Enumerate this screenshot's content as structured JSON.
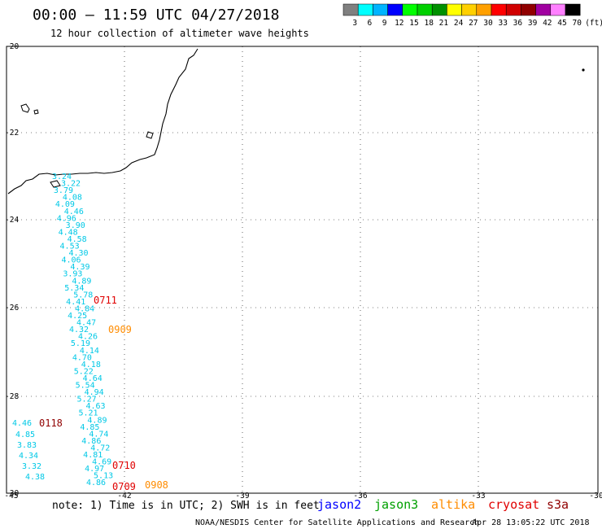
{
  "title": "00:00 – 11:59 UTC 04/27/2018",
  "subtitle": "12 hour collection of altimeter wave heights",
  "legend": {
    "labels": [
      "3",
      "6",
      "9",
      "12",
      "15",
      "18",
      "21",
      "24",
      "27",
      "30",
      "33",
      "36",
      "39",
      "42",
      "45",
      "70"
    ],
    "unit": "(ft)",
    "colors": [
      "#808080",
      "#00ffff",
      "#00b4ff",
      "#0000ff",
      "#00ff00",
      "#00d000",
      "#009000",
      "#ffff00",
      "#ffd000",
      "#ffa000",
      "#ff0000",
      "#d00000",
      "#900000",
      "#a000a0",
      "#ff80ff",
      "#000000"
    ]
  },
  "axes": {
    "lon_labels": [
      "-45",
      "-42",
      "-39",
      "-36",
      "-33",
      "-30"
    ],
    "lat_labels": [
      "-20",
      "-22",
      "-24",
      "-26",
      "-28",
      "-30"
    ]
  },
  "wave_color": "#00c8e6",
  "column1": {
    "values": [
      "3.24",
      "3.22",
      "3.79",
      "4.08",
      "4.09",
      "4.46",
      "4.96",
      "3.90",
      "4.48",
      "4.58",
      "4.53",
      "4.30",
      "4.06",
      "4.39",
      "3.93",
      "4.89",
      "5.34",
      "5.78",
      "4.41",
      "4.84",
      "4.25",
      "4.47",
      "4.32",
      "4.26",
      "5.19",
      "4.14",
      "4.70",
      "4.18",
      "5.22",
      "4.64",
      "5.54",
      "4.94",
      "5.27",
      "4.63",
      "5.21",
      "4.89",
      "4.85",
      "4.74",
      "4.86",
      "4.72",
      "4.81",
      "4.69",
      "4.97",
      "5.13",
      "4.86"
    ]
  },
  "column2": {
    "values": [
      "4.46",
      "4.85",
      "3.83",
      "4.34",
      "3.32",
      "4.38"
    ]
  },
  "times": [
    {
      "label": "0711",
      "color": "#e00000"
    },
    {
      "label": "0909",
      "color": "#ff8c00"
    },
    {
      "label": "0118",
      "color": "#900000"
    },
    {
      "label": "0710",
      "color": "#e00000"
    },
    {
      "label": "0709",
      "color": "#e00000"
    },
    {
      "label": "0908",
      "color": "#ff8c00"
    }
  ],
  "footer": {
    "note": "note: 1) Time is in UTC; 2) SWH is in feet",
    "satellites": [
      {
        "name": "jason2",
        "color": "#0000ff"
      },
      {
        "name": "jason3",
        "color": "#00a000"
      },
      {
        "name": "altika",
        "color": "#ff8c00"
      },
      {
        "name": "cryosat",
        "color": "#e00000"
      },
      {
        "name": "s3a",
        "color": "#900000"
      }
    ],
    "credit": "NOAA/NESDIS Center for Satellite Applications and Research",
    "timestamp": "Apr 28 13:05:22 UTC 2018"
  }
}
